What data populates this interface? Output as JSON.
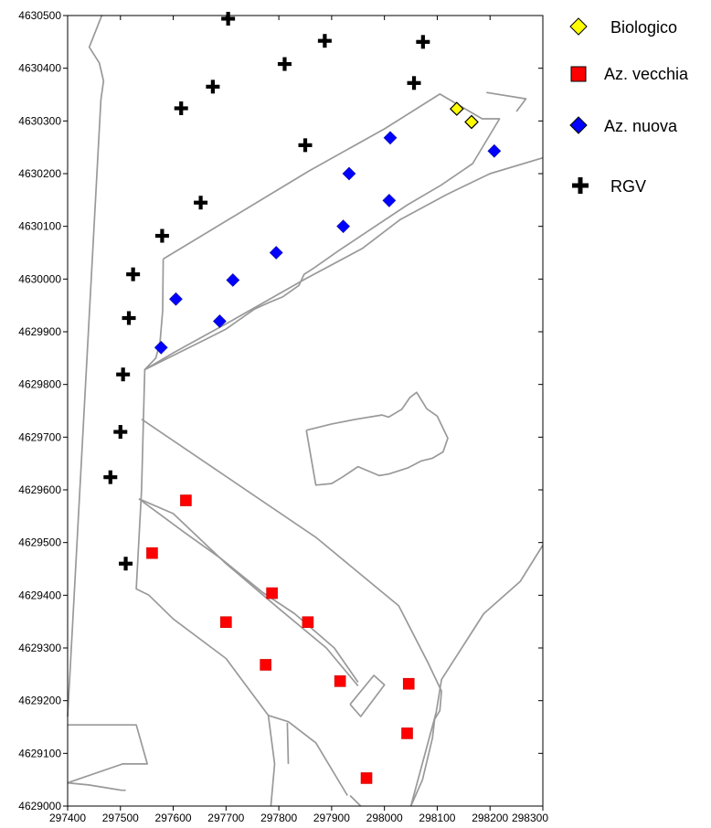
{
  "chart_data": {
    "type": "scatter",
    "title": "",
    "xlabel": "",
    "ylabel": "",
    "xlim": [
      297400,
      298300
    ],
    "ylim": [
      4629000,
      4630500
    ],
    "x_ticks": [
      297400,
      297500,
      297600,
      297700,
      297800,
      297900,
      298000,
      298100,
      298200,
      298300
    ],
    "y_ticks": [
      4629000,
      4629100,
      4629200,
      4629300,
      4629400,
      4629500,
      4629600,
      4629700,
      4629800,
      4629900,
      4630000,
      4630100,
      4630200,
      4630300,
      4630400,
      4630500
    ],
    "x_tick_labels": [
      "297400",
      "297500",
      "297600",
      "297700",
      "297800",
      "297900",
      "298000",
      "298100",
      "298200",
      "298300"
    ],
    "y_tick_labels": [
      "4629000",
      "4629100",
      "4629200",
      "4629300",
      "4629400",
      "4629500",
      "4629600",
      "4629700",
      "4629800",
      "4629900",
      "4630000",
      "4630100",
      "4630200",
      "4630300",
      "4630400",
      "4630500"
    ],
    "grid": false,
    "legend_position": "right",
    "series": [
      {
        "name": "Biologico",
        "marker": "diamond",
        "color": "#ffff00",
        "points": [
          [
            298137,
            4630323
          ],
          [
            298165,
            4630298
          ]
        ]
      },
      {
        "name": "Az. vecchia",
        "marker": "square",
        "color": "#ff0000",
        "points": [
          [
            297624,
            4629580
          ],
          [
            297560,
            4629480
          ],
          [
            297787,
            4629404
          ],
          [
            297700,
            4629349
          ],
          [
            297855,
            4629349
          ],
          [
            297775,
            4629268
          ],
          [
            297916,
            4629237
          ],
          [
            298046,
            4629232
          ],
          [
            298043,
            4629138
          ],
          [
            297966,
            4629053
          ]
        ]
      },
      {
        "name": "Az. nuova",
        "marker": "diamond",
        "color": "#0000ff",
        "points": [
          [
            298011,
            4630268
          ],
          [
            297933,
            4630200
          ],
          [
            298208,
            4630243
          ],
          [
            298009,
            4630149
          ],
          [
            297922,
            4630100
          ],
          [
            297795,
            4630050
          ],
          [
            297713,
            4629998
          ],
          [
            297605,
            4629962
          ],
          [
            297688,
            4629920
          ],
          [
            297577,
            4629870
          ]
        ]
      },
      {
        "name": "RGV",
        "marker": "cross",
        "color": "#000000",
        "points": [
          [
            297704,
            4630494
          ],
          [
            297887,
            4630452
          ],
          [
            298073,
            4630450
          ],
          [
            297811,
            4630408
          ],
          [
            297675,
            4630365
          ],
          [
            298056,
            4630372
          ],
          [
            297615,
            4630324
          ],
          [
            297850,
            4630254
          ],
          [
            297652,
            4630145
          ],
          [
            297579,
            4630082
          ],
          [
            297524,
            4630009
          ],
          [
            297516,
            4629926
          ],
          [
            297505,
            4629819
          ],
          [
            297500,
            4629710
          ],
          [
            297481,
            4629624
          ],
          [
            297510,
            4629460
          ]
        ]
      }
    ],
    "outlines": [
      [
        [
          297465,
          4630501
        ],
        [
          297441,
          4630440
        ],
        [
          297460,
          4630410
        ],
        [
          297468,
          4630376
        ],
        [
          297463,
          4630340
        ],
        [
          297400,
          4629170
        ]
      ],
      [
        [
          297581,
          4630038
        ],
        [
          297700,
          4630110
        ],
        [
          297857,
          4630205
        ],
        [
          298000,
          4630285
        ],
        [
          298105,
          4630351
        ],
        [
          298185,
          4630304
        ],
        [
          298218,
          4630304
        ],
        [
          298167,
          4630219
        ],
        [
          298107,
          4630178
        ],
        [
          298044,
          4630141
        ],
        [
          297915,
          4630055
        ],
        [
          297865,
          4630020
        ],
        [
          297848,
          4630009
        ],
        [
          297838,
          4629988
        ],
        [
          297807,
          4629966
        ],
        [
          297780,
          4629955
        ],
        [
          297754,
          4629943
        ],
        [
          297700,
          4629905
        ],
        [
          297660,
          4629885
        ],
        [
          297546,
          4629828
        ],
        [
          297567,
          4629850
        ],
        [
          297575,
          4629880
        ],
        [
          297580,
          4629940
        ],
        [
          297581,
          4630038
        ]
      ],
      [
        [
          298193,
          4630354
        ],
        [
          298268,
          4630342
        ],
        [
          298250,
          4630318
        ]
      ],
      [
        [
          297546,
          4629828
        ],
        [
          297600,
          4629860
        ],
        [
          297700,
          4629915
        ],
        [
          297850,
          4630000
        ],
        [
          297958,
          4630058
        ],
        [
          298030,
          4630113
        ],
        [
          298117,
          4630160
        ],
        [
          298200,
          4630200
        ],
        [
          298300,
          4630230
        ]
      ],
      [
        [
          297540,
          4629734
        ],
        [
          297870,
          4629510
        ],
        [
          298027,
          4629380
        ],
        [
          298083,
          4629271
        ],
        [
          298108,
          4629218
        ],
        [
          298105,
          4629181
        ],
        [
          298095,
          4629165
        ],
        [
          298091,
          4629129
        ],
        [
          298072,
          4629050
        ],
        [
          298050,
          4629000
        ]
      ],
      [
        [
          298050,
          4629000
        ],
        [
          298098,
          4629178
        ],
        [
          298108,
          4629240
        ],
        [
          298188,
          4629365
        ],
        [
          298257,
          4629426
        ],
        [
          298300,
          4629495
        ]
      ],
      [
        [
          297535,
          4629583
        ],
        [
          297600,
          4629555
        ],
        [
          297700,
          4629460
        ],
        [
          297800,
          4629375
        ],
        [
          297890,
          4629300
        ],
        [
          297950,
          4629228
        ]
      ],
      [
        [
          297535,
          4629583
        ],
        [
          297620,
          4629520
        ],
        [
          297690,
          4629470
        ],
        [
          297770,
          4629405
        ],
        [
          297830,
          4629365
        ],
        [
          297905,
          4629300
        ],
        [
          297950,
          4629235
        ]
      ],
      [
        [
          297935,
          4629193
        ],
        [
          297980,
          4629248
        ],
        [
          298000,
          4629230
        ],
        [
          297955,
          4629170
        ],
        [
          297935,
          4629193
        ]
      ],
      [
        [
          297546,
          4629828
        ],
        [
          297540,
          4629600
        ],
        [
          297530,
          4629412
        ],
        [
          297554,
          4629400
        ],
        [
          297600,
          4629355
        ],
        [
          297700,
          4629280
        ],
        [
          297780,
          4629172
        ],
        [
          297818,
          4629160
        ],
        [
          297870,
          4629120
        ],
        [
          297930,
          4629020
        ]
      ],
      [
        [
          297935,
          4629020
        ],
        [
          297955,
          4629000
        ]
      ],
      [
        [
          297816,
          4629158
        ],
        [
          297818,
          4629080
        ]
      ],
      [
        [
          297780,
          4629172
        ],
        [
          297792,
          4629080
        ],
        [
          297785,
          4629000
        ]
      ],
      [
        [
          297400,
          4629154
        ],
        [
          297530,
          4629154
        ],
        [
          297551,
          4629080
        ],
        [
          297504,
          4629080
        ],
        [
          297400,
          4629044
        ]
      ],
      [
        [
          297400,
          4629044
        ],
        [
          297440,
          4629040
        ],
        [
          297502,
          4629030
        ],
        [
          297510,
          4629030
        ]
      ],
      [
        [
          297852,
          4629713
        ],
        [
          297900,
          4629725
        ],
        [
          297947,
          4629734
        ],
        [
          297995,
          4629742
        ],
        [
          298008,
          4629738
        ],
        [
          298033,
          4629753
        ],
        [
          298048,
          4629775
        ],
        [
          298061,
          4629785
        ],
        [
          298080,
          4629754
        ],
        [
          298100,
          4629740
        ],
        [
          298120,
          4629698
        ],
        [
          298111,
          4629672
        ],
        [
          298091,
          4629660
        ],
        [
          298070,
          4629655
        ],
        [
          298045,
          4629642
        ],
        [
          298027,
          4629636
        ],
        [
          298008,
          4629630
        ],
        [
          297990,
          4629627
        ],
        [
          297950,
          4629644
        ],
        [
          297920,
          4629624
        ],
        [
          297900,
          4629612
        ],
        [
          297870,
          4629609
        ],
        [
          297852,
          4629713
        ]
      ]
    ],
    "colors": {
      "outline": "#999999",
      "axis": "#000000"
    }
  }
}
